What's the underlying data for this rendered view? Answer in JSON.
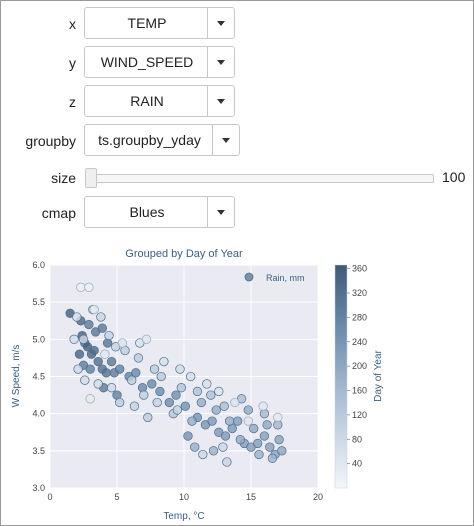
{
  "controls": {
    "x": {
      "label": "x",
      "value": "TEMP"
    },
    "y": {
      "label": "y",
      "value": "WIND_SPEED"
    },
    "z": {
      "label": "z",
      "value": "RAIN"
    },
    "groupby": {
      "label": "groupby",
      "value": "ts.groupby_yday"
    },
    "size": {
      "label": "size",
      "value": "100",
      "min": 0,
      "max": 100,
      "current": 0
    },
    "cmap": {
      "label": "cmap",
      "value": "Blues"
    }
  },
  "colors": {
    "accent": "#4f6f8f",
    "panel_bg": "#eaeaf2",
    "label_blue": "#3a6186"
  },
  "chart_data": {
    "type": "scatter",
    "title": "Grouped by Day of Year",
    "xlabel": "Temp, °C",
    "ylabel": "W Speed, m/s",
    "xlim": [
      0,
      20
    ],
    "ylim": [
      3.0,
      6.0
    ],
    "xticks": [
      "0",
      "5",
      "10",
      "15",
      "20"
    ],
    "yticks": [
      "3.0",
      "3.5",
      "4.0",
      "4.5",
      "5.0",
      "5.5",
      "6.0"
    ],
    "legend": {
      "label": "Rain, mm",
      "placement": "top-right"
    },
    "colorbar": {
      "label": "Day of Year",
      "range": [
        0,
        366
      ],
      "ticks": [
        "40",
        "80",
        "120",
        "160",
        "200",
        "240",
        "280",
        "320",
        "360"
      ]
    },
    "grid": true,
    "series": [
      {
        "points": [
          [
            1.5,
            5.35,
            360
          ],
          [
            2.3,
            5.25,
            340
          ],
          [
            2.4,
            5.05,
            350
          ],
          [
            2.6,
            4.95,
            330
          ],
          [
            2.8,
            4.9,
            355
          ],
          [
            3.1,
            4.8,
            345
          ],
          [
            3.3,
            4.85,
            335
          ],
          [
            3.6,
            4.7,
            325
          ],
          [
            3.9,
            4.6,
            320
          ],
          [
            4.2,
            4.55,
            315
          ],
          [
            2.9,
            5.2,
            300
          ],
          [
            3.4,
            5.1,
            310
          ],
          [
            3.9,
            5.15,
            305
          ],
          [
            4.3,
            4.95,
            310
          ],
          [
            4.6,
            4.7,
            300
          ],
          [
            2.2,
            4.8,
            345
          ],
          [
            2.5,
            4.65,
            300
          ],
          [
            3.0,
            4.6,
            290
          ],
          [
            4.0,
            4.35,
            300
          ],
          [
            4.8,
            4.55,
            295
          ],
          [
            5.2,
            4.6,
            285
          ],
          [
            5.0,
            4.25,
            290
          ],
          [
            5.9,
            4.5,
            280
          ],
          [
            6.4,
            4.55,
            275
          ],
          [
            6.9,
            4.35,
            270
          ],
          [
            7.6,
            4.4,
            270
          ],
          [
            8.2,
            4.3,
            265
          ],
          [
            8.9,
            4.15,
            260
          ],
          [
            9.4,
            4.25,
            255
          ],
          [
            10.1,
            4.1,
            250
          ],
          [
            10.3,
            3.7,
            245
          ],
          [
            11.0,
            3.95,
            245
          ],
          [
            11.6,
            3.85,
            240
          ],
          [
            12.1,
            3.9,
            235
          ],
          [
            12.6,
            3.75,
            235
          ],
          [
            13.1,
            3.7,
            230
          ],
          [
            13.6,
            3.8,
            230
          ],
          [
            14.0,
            3.9,
            225
          ],
          [
            14.5,
            3.6,
            225
          ],
          [
            15.0,
            3.55,
            220
          ],
          [
            15.5,
            3.6,
            220
          ],
          [
            16.0,
            3.7,
            215
          ],
          [
            16.4,
            3.55,
            215
          ],
          [
            16.8,
            3.45,
            210
          ],
          [
            17.1,
            3.65,
            210
          ],
          [
            17.3,
            3.5,
            205
          ],
          [
            16.2,
            3.85,
            200
          ],
          [
            15.2,
            3.8,
            200
          ],
          [
            14.8,
            4.05,
            195
          ],
          [
            14.2,
            3.65,
            195
          ],
          [
            13.4,
            3.9,
            190
          ],
          [
            12.4,
            4.05,
            190
          ],
          [
            11.3,
            4.15,
            185
          ],
          [
            10.6,
            3.9,
            185
          ],
          [
            10.8,
            3.55,
            180
          ],
          [
            12.2,
            3.5,
            180
          ],
          [
            15.6,
            3.45,
            175
          ],
          [
            16.6,
            3.4,
            170
          ],
          [
            17.0,
            3.85,
            165
          ],
          [
            16.0,
            4.0,
            160
          ],
          [
            14.3,
            4.2,
            150
          ],
          [
            13.0,
            4.1,
            150
          ],
          [
            12.0,
            4.25,
            140
          ],
          [
            11.0,
            4.3,
            140
          ],
          [
            9.8,
            4.35,
            135
          ],
          [
            9.2,
            4.0,
            130
          ],
          [
            8.3,
            4.5,
            125
          ],
          [
            7.8,
            4.6,
            120
          ],
          [
            6.6,
            4.75,
            115
          ],
          [
            6.1,
            4.45,
            110
          ],
          [
            5.6,
            4.85,
            110
          ],
          [
            4.9,
            4.9,
            100
          ],
          [
            4.4,
            5.05,
            95
          ],
          [
            3.8,
            5.3,
            90
          ],
          [
            3.2,
            5.4,
            85
          ],
          [
            2.5,
            5.0,
            80
          ],
          [
            2.1,
            4.6,
            75
          ],
          [
            2.3,
            5.7,
            20
          ],
          [
            2.9,
            5.7,
            15
          ],
          [
            3.3,
            5.4,
            25
          ],
          [
            3.0,
            4.2,
            30
          ],
          [
            4.1,
            4.8,
            40
          ],
          [
            5.4,
            4.95,
            50
          ],
          [
            6.7,
            4.95,
            55
          ],
          [
            7.2,
            5.0,
            45
          ],
          [
            8.5,
            4.7,
            60
          ],
          [
            9.7,
            4.6,
            70
          ],
          [
            10.5,
            4.5,
            65
          ],
          [
            11.7,
            4.4,
            60
          ],
          [
            12.6,
            4.3,
            55
          ],
          [
            13.8,
            4.15,
            50
          ],
          [
            14.8,
            3.9,
            45
          ],
          [
            15.9,
            4.1,
            40
          ],
          [
            17.0,
            3.95,
            35
          ],
          [
            12.9,
            3.55,
            80
          ],
          [
            11.4,
            3.45,
            85
          ],
          [
            13.2,
            3.35,
            90
          ],
          [
            9.5,
            4.05,
            95
          ],
          [
            8.0,
            4.15,
            100
          ],
          [
            7.0,
            4.25,
            105
          ],
          [
            7.3,
            3.95,
            115
          ],
          [
            6.3,
            4.1,
            100
          ],
          [
            5.2,
            4.15,
            115
          ],
          [
            1.8,
            5.0,
            70
          ],
          [
            2.0,
            5.3,
            60
          ],
          [
            3.6,
            4.4,
            65
          ],
          [
            4.6,
            4.35,
            75
          ],
          [
            2.6,
            4.45,
            70
          ]
        ]
      }
    ]
  }
}
